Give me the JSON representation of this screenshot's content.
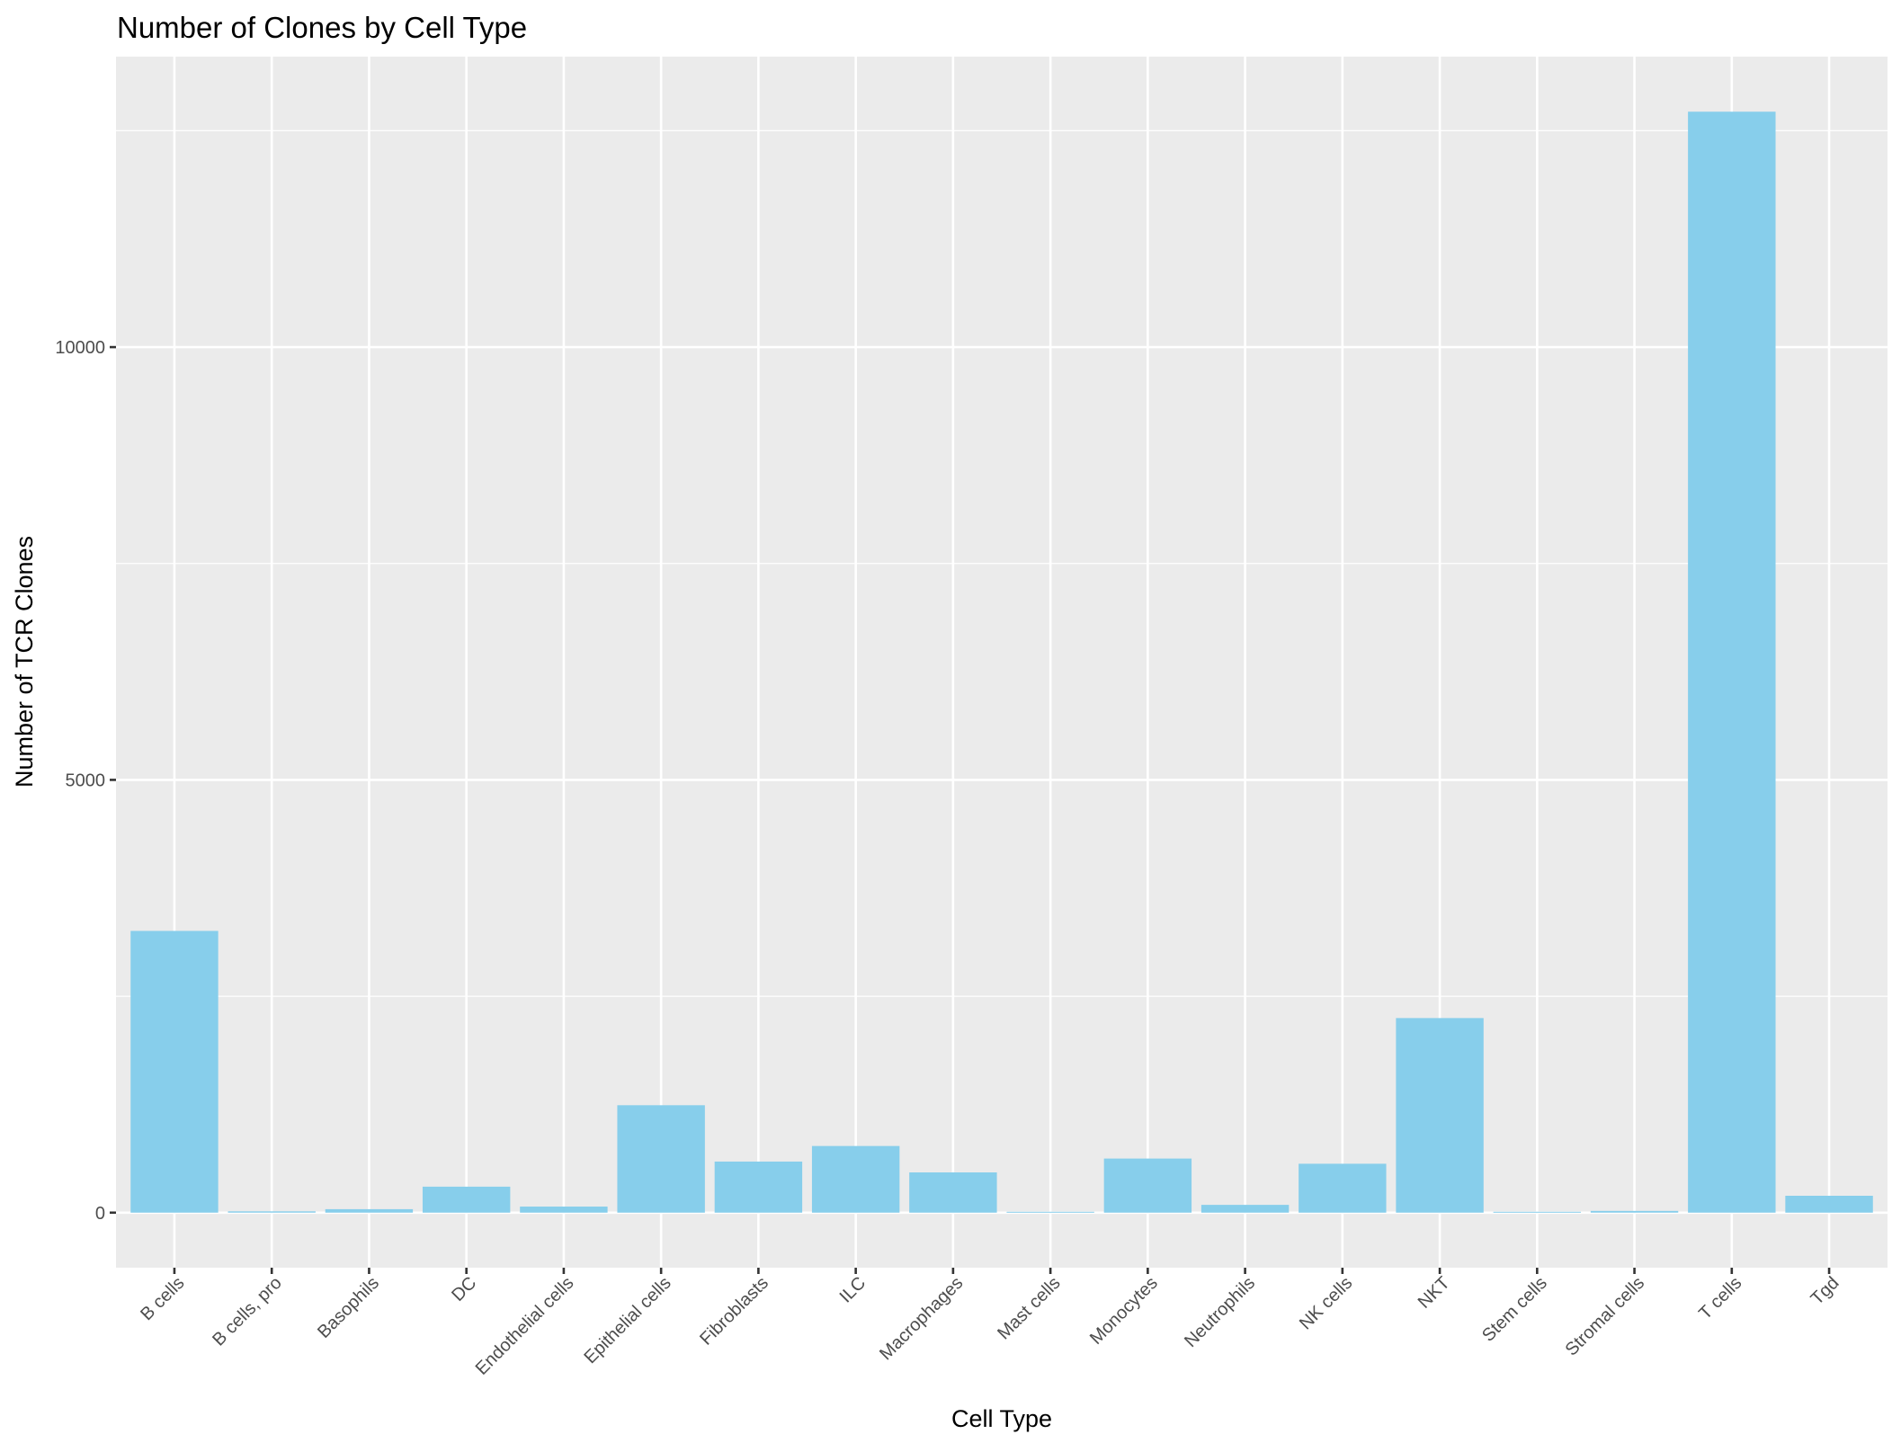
{
  "chart_data": {
    "type": "bar",
    "title": "Number of Clones by Cell Type",
    "xlabel": "Cell Type",
    "ylabel": "Number of TCR Clones",
    "categories": [
      "B cells",
      "B cells, pro",
      "Basophils",
      "DC",
      "Endothelial cells",
      "Epithelial cells",
      "Fibroblasts",
      "ILC",
      "Macrophages",
      "Mast cells",
      "Monocytes",
      "Neutrophils",
      "NK cells",
      "NKT",
      "Stem cells",
      "Stromal cells",
      "T cells",
      "Tgd"
    ],
    "values": [
      3255,
      15,
      40,
      300,
      70,
      1241,
      590,
      770,
      465,
      10,
      625,
      90,
      565,
      2248,
      10,
      20,
      12720,
      195
    ],
    "yticks": [
      0,
      5000,
      10000
    ],
    "ytick_labels": [
      "0",
      "5000",
      "10000"
    ],
    "ylim": [
      -636,
      13356
    ],
    "grid": true,
    "legend": "none",
    "bar_color": "#87CEEB",
    "panel_background": "#EBEBEB",
    "grid_color": "#FFFFFF",
    "x_tick_label_rotation": 45
  }
}
